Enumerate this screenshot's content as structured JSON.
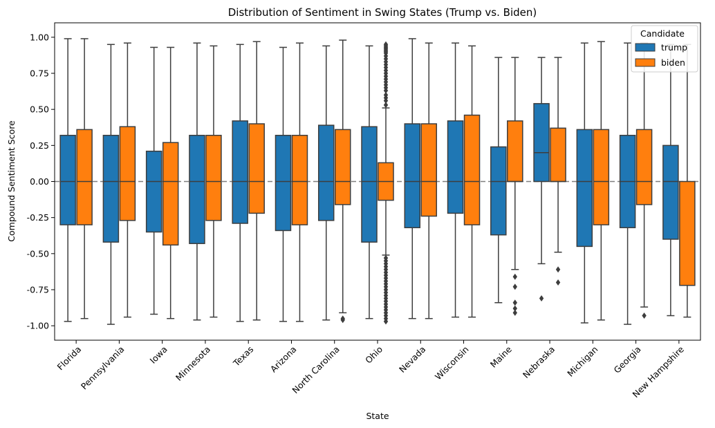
{
  "chart_data": {
    "type": "boxplot",
    "title": "Distribution of Sentiment in Swing States (Trump vs. Biden)",
    "xlabel": "State",
    "ylabel": "Compound Sentiment Score",
    "ylim": [
      -1.1,
      1.1
    ],
    "yticks": [
      "1.00",
      "0.75",
      "0.50",
      "0.25",
      "0.00",
      "-0.25",
      "-0.50",
      "-0.75",
      "-1.00"
    ],
    "categories": [
      "Florida",
      "Pennsylvania",
      "Iowa",
      "Minnesota",
      "Texas",
      "Arizona",
      "North Carolina",
      "Ohio",
      "Nevada",
      "Wisconsin",
      "Maine",
      "Nebraska",
      "Michigan",
      "Georgia",
      "New Hampshire"
    ],
    "reference_line": 0.0,
    "legend": {
      "title": "Candidate",
      "position": "top-right"
    },
    "series": [
      {
        "name": "trump",
        "color": "#1f77b4",
        "boxes": [
          {
            "min": -0.97,
            "q1": -0.3,
            "median": 0.0,
            "q3": 0.32,
            "max": 0.99,
            "outliers": []
          },
          {
            "min": -0.99,
            "q1": -0.42,
            "median": 0.0,
            "q3": 0.32,
            "max": 0.95,
            "outliers": []
          },
          {
            "min": -0.92,
            "q1": -0.35,
            "median": 0.0,
            "q3": 0.21,
            "max": 0.93,
            "outliers": []
          },
          {
            "min": -0.96,
            "q1": -0.43,
            "median": 0.0,
            "q3": 0.32,
            "max": 0.96,
            "outliers": []
          },
          {
            "min": -0.97,
            "q1": -0.29,
            "median": 0.0,
            "q3": 0.42,
            "max": 0.95,
            "outliers": []
          },
          {
            "min": -0.97,
            "q1": -0.34,
            "median": 0.0,
            "q3": 0.32,
            "max": 0.93,
            "outliers": []
          },
          {
            "min": -0.96,
            "q1": -0.27,
            "median": 0.0,
            "q3": 0.39,
            "max": 0.94,
            "outliers": []
          },
          {
            "min": -0.95,
            "q1": -0.42,
            "median": 0.0,
            "q3": 0.38,
            "max": 0.94,
            "outliers": []
          },
          {
            "min": -0.95,
            "q1": -0.32,
            "median": 0.0,
            "q3": 0.4,
            "max": 0.99,
            "outliers": []
          },
          {
            "min": -0.94,
            "q1": -0.22,
            "median": 0.0,
            "q3": 0.42,
            "max": 0.96,
            "outliers": []
          },
          {
            "min": -0.84,
            "q1": -0.37,
            "median": 0.0,
            "q3": 0.24,
            "max": 0.86,
            "outliers": []
          },
          {
            "min": -0.57,
            "q1": 0.0,
            "median": 0.2,
            "q3": 0.54,
            "max": 0.86,
            "outliers": [
              -0.81
            ]
          },
          {
            "min": -0.98,
            "q1": -0.45,
            "median": 0.0,
            "q3": 0.36,
            "max": 0.96,
            "outliers": []
          },
          {
            "min": -0.99,
            "q1": -0.32,
            "median": 0.0,
            "q3": 0.32,
            "max": 0.96,
            "outliers": []
          },
          {
            "min": -0.93,
            "q1": -0.4,
            "median": 0.0,
            "q3": 0.25,
            "max": 0.95,
            "outliers": []
          }
        ]
      },
      {
        "name": "biden",
        "color": "#ff7f0e",
        "boxes": [
          {
            "min": -0.95,
            "q1": -0.3,
            "median": 0.0,
            "q3": 0.36,
            "max": 0.99,
            "outliers": []
          },
          {
            "min": -0.94,
            "q1": -0.27,
            "median": 0.0,
            "q3": 0.38,
            "max": 0.96,
            "outliers": []
          },
          {
            "min": -0.95,
            "q1": -0.44,
            "median": 0.0,
            "q3": 0.27,
            "max": 0.93,
            "outliers": []
          },
          {
            "min": -0.94,
            "q1": -0.27,
            "median": 0.0,
            "q3": 0.32,
            "max": 0.94,
            "outliers": []
          },
          {
            "min": -0.96,
            "q1": -0.22,
            "median": 0.0,
            "q3": 0.4,
            "max": 0.97,
            "outliers": []
          },
          {
            "min": -0.97,
            "q1": -0.3,
            "median": 0.0,
            "q3": 0.32,
            "max": 0.96,
            "outliers": []
          },
          {
            "min": -0.91,
            "q1": -0.16,
            "median": 0.0,
            "q3": 0.36,
            "max": 0.98,
            "outliers": [
              -0.95,
              -0.96
            ]
          },
          {
            "min": -0.51,
            "q1": -0.13,
            "median": 0.0,
            "q3": 0.13,
            "max": 0.51,
            "outliers": [
              0.53,
              0.56,
              0.58,
              0.6,
              0.63,
              0.65,
              0.67,
              0.69,
              0.71,
              0.73,
              0.75,
              0.77,
              0.79,
              0.81,
              0.83,
              0.85,
              0.87,
              0.89,
              0.9,
              0.91,
              0.92,
              0.93,
              0.94,
              0.95,
              -0.53,
              -0.55,
              -0.57,
              -0.59,
              -0.61,
              -0.63,
              -0.65,
              -0.67,
              -0.69,
              -0.71,
              -0.73,
              -0.75,
              -0.77,
              -0.79,
              -0.81,
              -0.83,
              -0.85,
              -0.87,
              -0.89,
              -0.91,
              -0.93,
              -0.95,
              -0.97
            ]
          },
          {
            "min": -0.95,
            "q1": -0.24,
            "median": 0.0,
            "q3": 0.4,
            "max": 0.96,
            "outliers": []
          },
          {
            "min": -0.94,
            "q1": -0.3,
            "median": 0.0,
            "q3": 0.46,
            "max": 0.94,
            "outliers": []
          },
          {
            "min": -0.61,
            "q1": 0.0,
            "median": 0.0,
            "q3": 0.42,
            "max": 0.86,
            "outliers": [
              -0.66,
              -0.73,
              -0.84,
              -0.88,
              -0.91
            ]
          },
          {
            "min": -0.49,
            "q1": 0.0,
            "median": 0.0,
            "q3": 0.37,
            "max": 0.86,
            "outliers": [
              -0.61,
              -0.7
            ]
          },
          {
            "min": -0.96,
            "q1": -0.3,
            "median": 0.0,
            "q3": 0.36,
            "max": 0.97,
            "outliers": []
          },
          {
            "min": -0.87,
            "q1": -0.16,
            "median": 0.0,
            "q3": 0.36,
            "max": 0.96,
            "outliers": [
              -0.93
            ]
          },
          {
            "min": -0.94,
            "q1": -0.72,
            "median": -0.72,
            "q3": 0.0,
            "max": 0.95,
            "outliers": []
          }
        ]
      }
    ]
  }
}
